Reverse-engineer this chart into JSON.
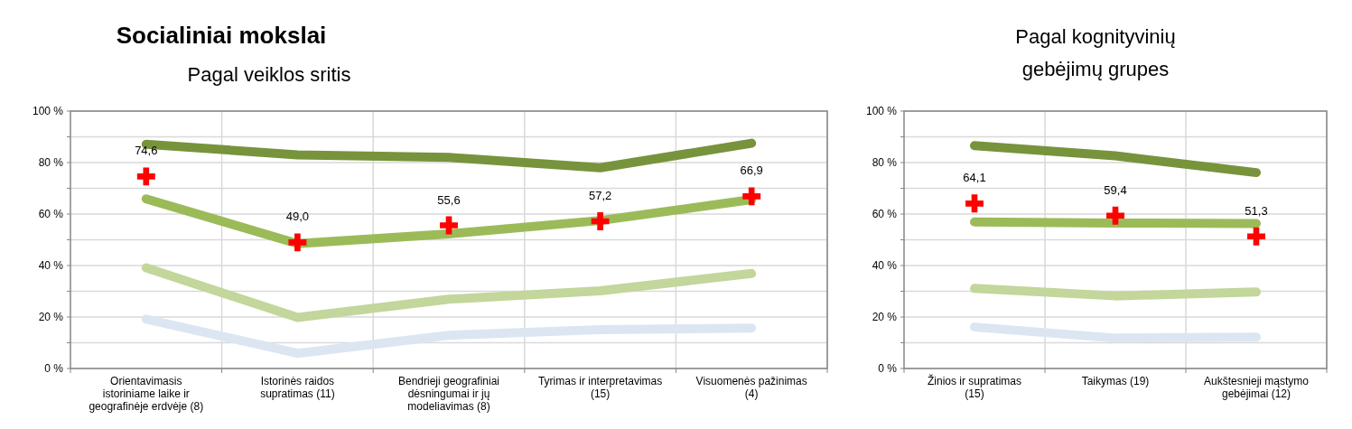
{
  "chart_data": [
    {
      "type": "line",
      "title": "Socialiniai mokslai",
      "subtitle": "Pagal veiklos sritis",
      "categories": [
        "Orientavimasis istoriniame laike ir geografinėje erdvėje (8)",
        "Istorinės raidos supratimas (11)",
        "Bendrieji geografiniai dėsningumai ir jų modeliavimas (8)",
        "Tyrimas ir interpretavimas (15)",
        "Visuomenės pažinimas (4)"
      ],
      "series": [
        {
          "color": "#77933c",
          "values": [
            87.1,
            83.0,
            82.0,
            78.0,
            87.5
          ]
        },
        {
          "color": "#9bbb59",
          "values": [
            65.9,
            48.5,
            52.3,
            57.5,
            65.6
          ]
        },
        {
          "color": "#c3d69b",
          "values": [
            39.1,
            19.8,
            26.9,
            30.2,
            36.9
          ]
        },
        {
          "color": "#dce6f2",
          "values": [
            19.2,
            5.9,
            12.9,
            15.1,
            15.7
          ]
        },
        {
          "type": "scatter",
          "color": "#ff0000",
          "marker": "cross",
          "values": [
            74.6,
            49.0,
            55.6,
            57.2,
            66.9
          ],
          "value_labels": [
            "74,6",
            "49,0",
            "55,6",
            "57,2",
            "66,9"
          ]
        }
      ],
      "ylim": [
        0,
        100
      ],
      "yticks": [
        {
          "value": 0,
          "label": "0 %"
        },
        {
          "value": 10,
          "label": null
        },
        {
          "value": 20,
          "label": "20 %"
        },
        {
          "value": 30,
          "label": null
        },
        {
          "value": 40,
          "label": "40 %"
        },
        {
          "value": 50,
          "label": null
        },
        {
          "value": 60,
          "label": "60 %"
        },
        {
          "value": 70,
          "label": null
        },
        {
          "value": 80,
          "label": "80 %"
        },
        {
          "value": 90,
          "label": null
        },
        {
          "value": 100,
          "label": "100 %"
        }
      ],
      "grid": true,
      "line_style": "solid"
    },
    {
      "type": "line",
      "title": "Pagal kognityvinių gebėjimų grupes",
      "categories": [
        "Žinios ir supratimas (15)",
        "Taikymas (19)",
        "Aukštesnieji mąstymo gebėjimai (12)"
      ],
      "series": [
        {
          "color": "#77933c",
          "values": [
            86.6,
            82.6,
            76.1
          ]
        },
        {
          "color": "#9bbb59",
          "values": [
            56.9,
            56.5,
            56.3
          ]
        },
        {
          "color": "#c3d69b",
          "values": [
            31.1,
            28.2,
            29.7
          ]
        },
        {
          "color": "#dce6f2",
          "values": [
            16.1,
            11.8,
            12.2
          ]
        },
        {
          "type": "scatter",
          "color": "#ff0000",
          "marker": "cross",
          "values": [
            64.1,
            59.4,
            51.3
          ],
          "value_labels": [
            "64,1",
            "59,4",
            "51,3"
          ]
        }
      ],
      "ylim": [
        0,
        100
      ],
      "yticks": [
        {
          "value": 0,
          "label": "0 %"
        },
        {
          "value": 10,
          "label": null
        },
        {
          "value": 20,
          "label": "20 %"
        },
        {
          "value": 30,
          "label": null
        },
        {
          "value": 40,
          "label": "40 %"
        },
        {
          "value": 50,
          "label": null
        },
        {
          "value": 60,
          "label": "60 %"
        },
        {
          "value": 70,
          "label": null
        },
        {
          "value": 80,
          "label": "80 %"
        },
        {
          "value": 90,
          "label": null
        },
        {
          "value": 100,
          "label": "100 %"
        }
      ],
      "grid": true,
      "line_style": "solid"
    }
  ]
}
